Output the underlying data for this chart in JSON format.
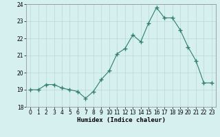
{
  "x": [
    0,
    1,
    2,
    3,
    4,
    5,
    6,
    7,
    8,
    9,
    10,
    11,
    12,
    13,
    14,
    15,
    16,
    17,
    18,
    19,
    20,
    21,
    22,
    23
  ],
  "y": [
    19.0,
    19.0,
    19.3,
    19.3,
    19.1,
    19.0,
    18.9,
    18.5,
    18.9,
    19.6,
    20.1,
    21.1,
    21.4,
    22.2,
    21.8,
    22.9,
    23.8,
    23.2,
    23.2,
    22.5,
    21.5,
    20.7,
    19.4,
    19.4
  ],
  "line_color": "#2e7d6e",
  "marker": "+",
  "marker_size": 4,
  "bg_color": "#d6f0ef",
  "grid_color": "#b8d8d8",
  "xlabel": "Humidex (Indice chaleur)",
  "ylim": [
    18,
    24
  ],
  "xlim": [
    -0.5,
    23.5
  ],
  "yticks": [
    18,
    19,
    20,
    21,
    22,
    23,
    24
  ],
  "xticks": [
    0,
    1,
    2,
    3,
    4,
    5,
    6,
    7,
    8,
    9,
    10,
    11,
    12,
    13,
    14,
    15,
    16,
    17,
    18,
    19,
    20,
    21,
    22,
    23
  ],
  "xlabel_fontsize": 6.5,
  "tick_fontsize": 5.5,
  "line_width": 0.8
}
